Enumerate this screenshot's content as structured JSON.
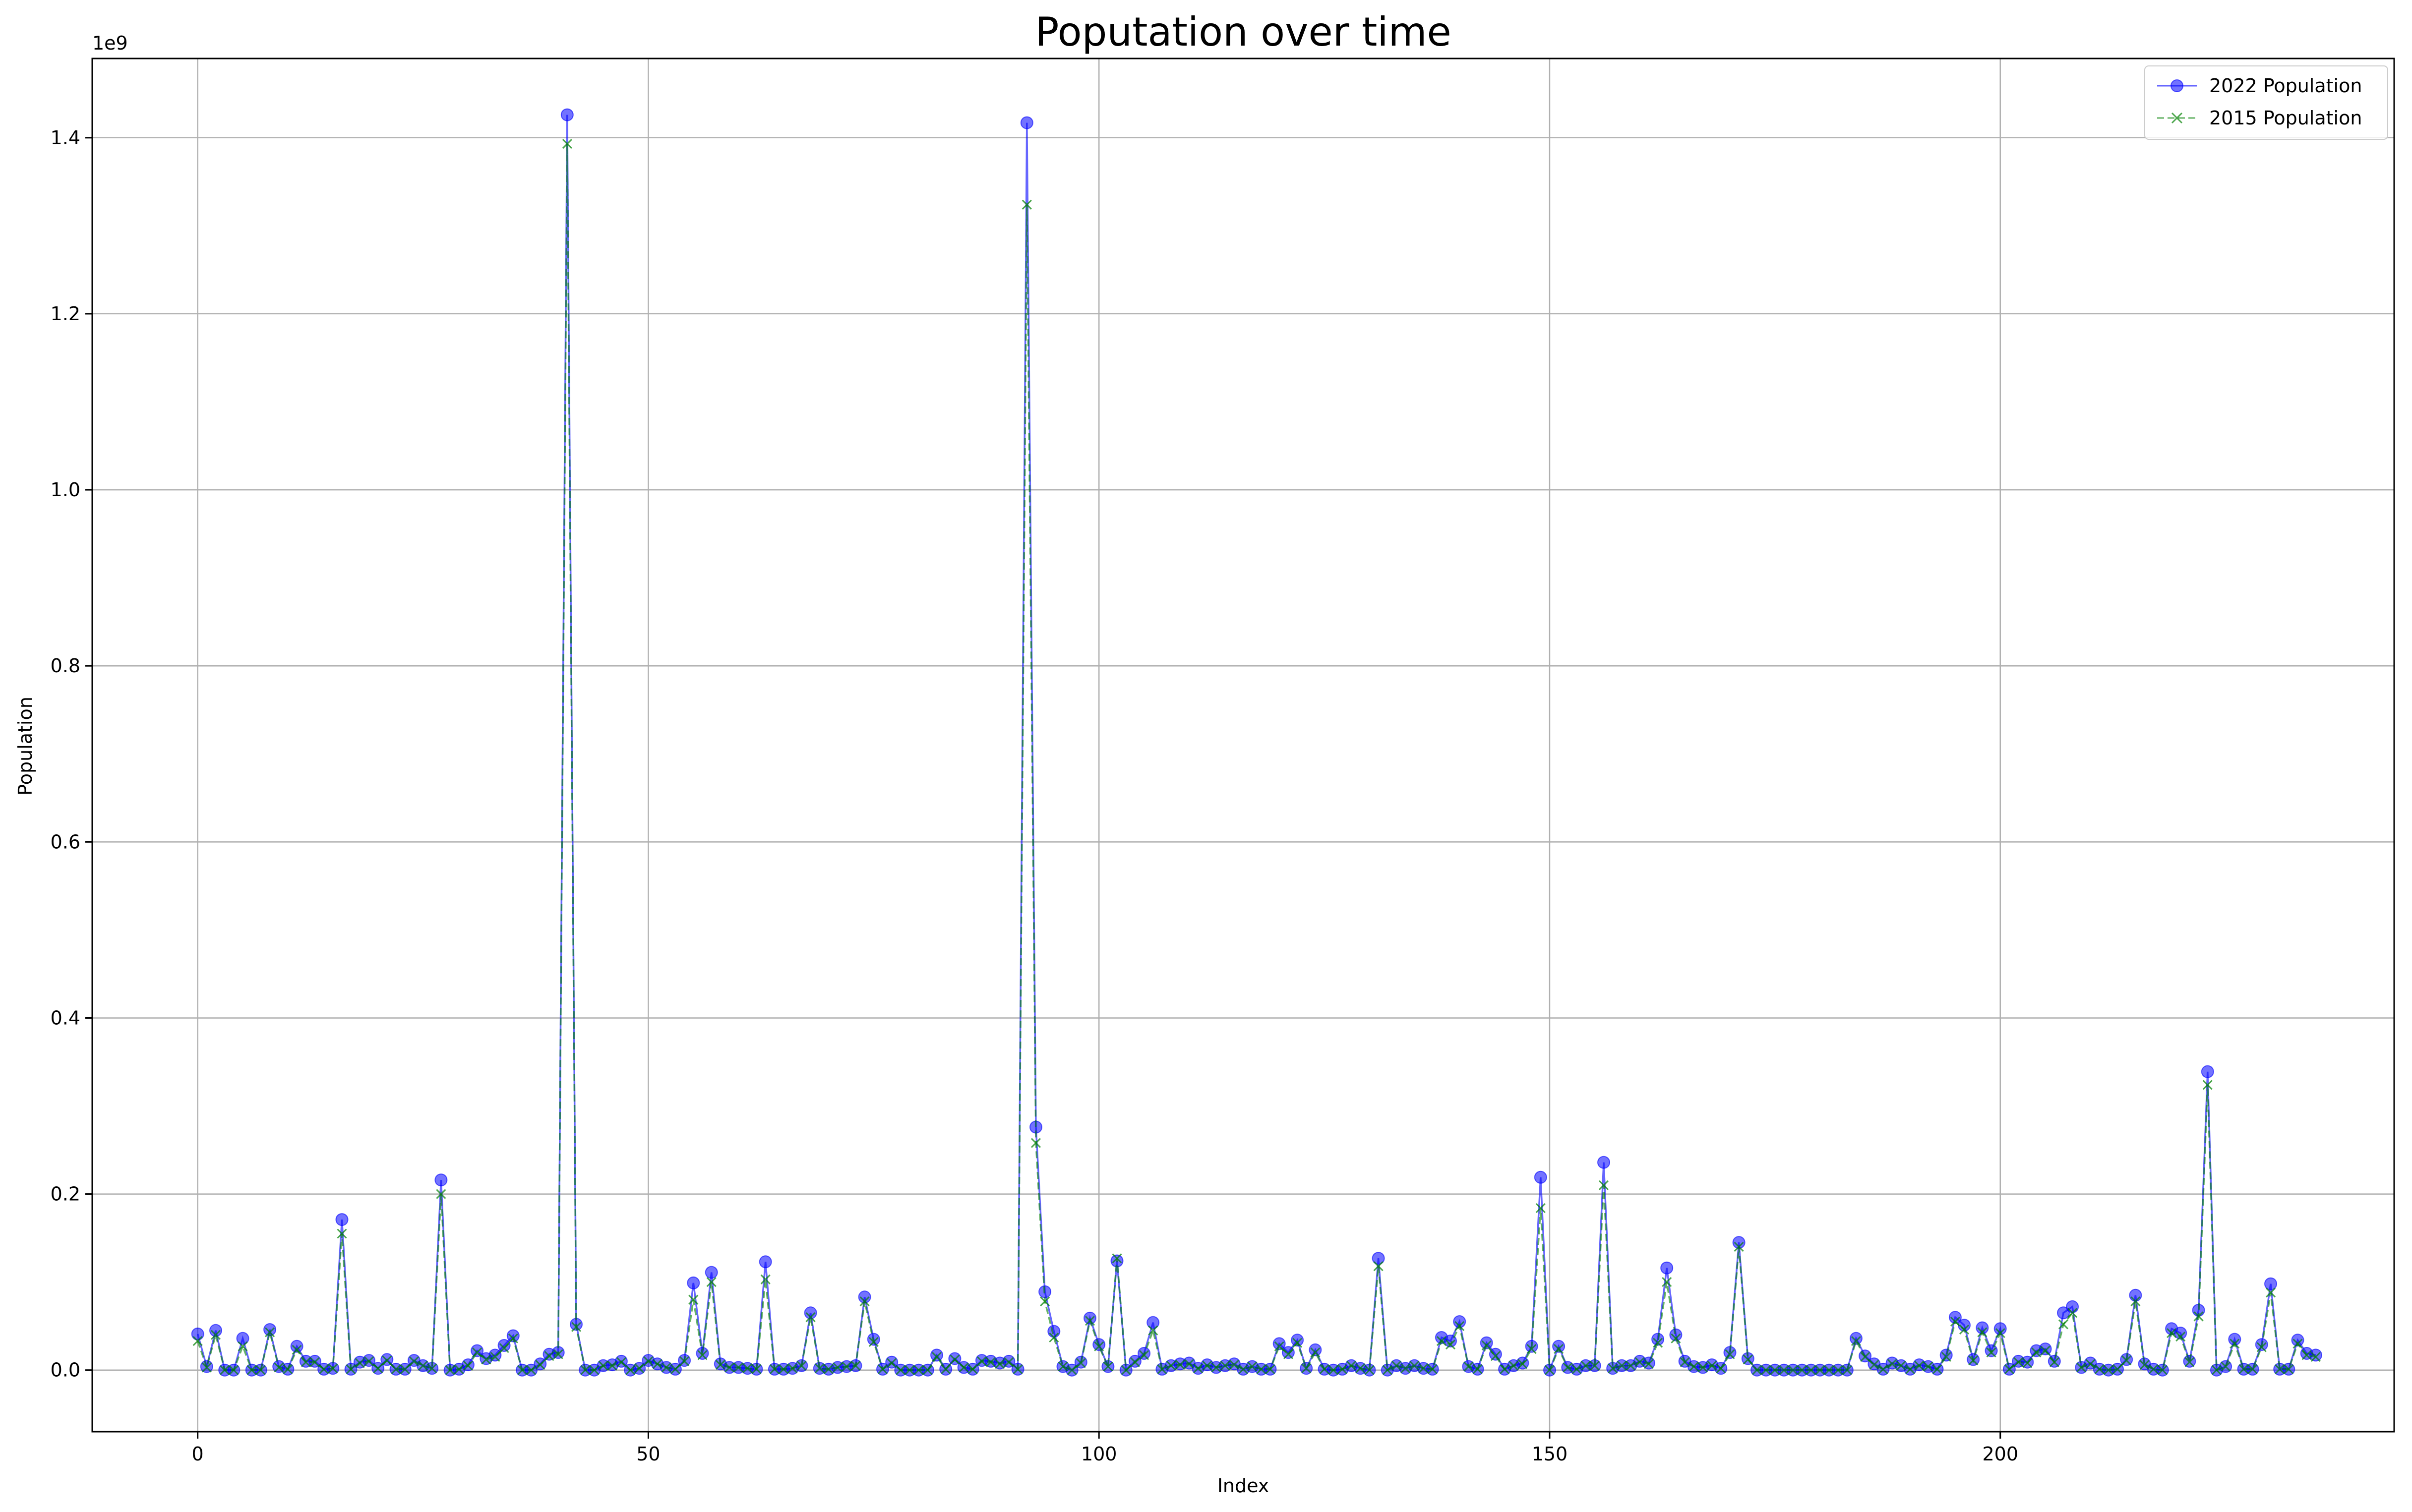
{
  "chart_data": {
    "type": "line",
    "title": "Poputation over time",
    "xlabel": "Index",
    "ylabel": "Population",
    "y_offset_label": "1e9",
    "xlim": [
      -11.7,
      243.7
    ],
    "ylim": [
      -0.07,
      1.49
    ],
    "x_ticks": [
      0,
      50,
      100,
      150,
      200
    ],
    "x_tick_labels": [
      "0",
      "50",
      "100",
      "150",
      "200"
    ],
    "y_ticks": [
      0.0,
      0.2,
      0.4,
      0.6,
      0.8,
      1.0,
      1.2,
      1.4
    ],
    "y_tick_labels": [
      "0.0",
      "0.2",
      "0.4",
      "0.6",
      "0.8",
      "1.0",
      "1.2",
      "1.4"
    ],
    "grid": true,
    "legend_position": "top-right",
    "colors": {
      "series_2022": "#0000ff",
      "series_2015": "#008000",
      "grid": "#b0b0b0"
    },
    "series": [
      {
        "name": "2022 Population",
        "style": "solid-circle",
        "values": [
          0.041,
          0.004,
          0.045,
          0.0,
          0.0,
          0.036,
          0.0,
          0.0,
          0.046,
          0.004,
          0.001,
          0.027,
          0.01,
          0.01,
          0.001,
          0.002,
          0.171,
          0.001,
          0.009,
          0.011,
          0.002,
          0.012,
          0.001,
          0.001,
          0.011,
          0.005,
          0.002,
          0.216,
          0.0,
          0.001,
          0.006,
          0.022,
          0.013,
          0.017,
          0.028,
          0.039,
          0.0,
          0.0,
          0.007,
          0.018,
          0.02,
          1.426,
          0.052,
          0.0,
          0.0,
          0.005,
          0.006,
          0.01,
          0.0,
          0.002,
          0.011,
          0.007,
          0.003,
          0.001,
          0.011,
          0.099,
          0.019,
          0.111,
          0.007,
          0.003,
          0.003,
          0.002,
          0.001,
          0.123,
          0.001,
          0.001,
          0.002,
          0.005,
          0.065,
          0.002,
          0.001,
          0.003,
          0.004,
          0.005,
          0.083,
          0.035,
          0.001,
          0.009,
          0.0,
          0.0,
          0.0,
          0.0,
          0.017,
          0.001,
          0.013,
          0.003,
          0.001,
          0.011,
          0.01,
          0.008,
          0.01,
          0.001,
          1.417,
          0.276,
          0.089,
          0.044,
          0.004,
          0.0,
          0.009,
          0.059,
          0.029,
          0.004,
          0.124,
          0.0,
          0.01,
          0.019,
          0.054,
          0.001,
          0.005,
          0.007,
          0.008,
          0.002,
          0.006,
          0.003,
          0.005,
          0.007,
          0.001,
          0.004,
          0.001,
          0.001,
          0.03,
          0.02,
          0.034,
          0.002,
          0.023,
          0.001,
          0.0,
          0.001,
          0.005,
          0.002,
          0.0,
          0.127,
          0.0,
          0.005,
          0.002,
          0.005,
          0.002,
          0.001,
          0.037,
          0.033,
          0.055,
          0.004,
          0.001,
          0.031,
          0.018,
          0.001,
          0.005,
          0.008,
          0.027,
          0.219,
          0.0,
          0.027,
          0.003,
          0.001,
          0.005,
          0.005,
          0.236,
          0.002,
          0.005,
          0.005,
          0.01,
          0.008,
          0.035,
          0.116,
          0.04,
          0.01,
          0.004,
          0.003,
          0.006,
          0.002,
          0.02,
          0.145,
          0.013,
          0.0,
          0.0,
          0.0,
          0.0,
          0.0,
          0.0,
          0.0,
          0.0,
          0.0,
          0.0,
          0.0,
          0.036,
          0.016,
          0.007,
          0.001,
          0.008,
          0.005,
          0.001,
          0.006,
          0.004,
          0.001,
          0.017,
          0.06,
          0.051,
          0.012,
          0.048,
          0.022,
          0.047,
          0.001,
          0.01,
          0.009,
          0.022,
          0.024,
          0.01,
          0.065,
          0.072,
          0.003,
          0.008,
          0.001,
          0.0,
          0.001,
          0.012,
          0.085,
          0.007,
          0.001,
          0.0,
          0.047,
          0.042,
          0.01,
          0.068,
          0.339,
          0.0,
          0.004,
          0.035,
          0.001,
          0.001,
          0.029,
          0.098,
          0.001,
          0.001,
          0.034,
          0.019,
          0.017
        ]
      },
      {
        "name": "2015 Population",
        "style": "dashed-x",
        "values": [
          0.033,
          0.003,
          0.04,
          0.0,
          0.0,
          0.027,
          0.0,
          0.0,
          0.043,
          0.003,
          0.001,
          0.023,
          0.009,
          0.009,
          0.001,
          0.002,
          0.155,
          0.001,
          0.008,
          0.01,
          0.002,
          0.011,
          0.001,
          0.001,
          0.01,
          0.005,
          0.002,
          0.2,
          0.0,
          0.001,
          0.005,
          0.02,
          0.012,
          0.015,
          0.025,
          0.036,
          0.0,
          0.0,
          0.006,
          0.016,
          0.018,
          1.393,
          0.049,
          0.0,
          0.0,
          0.005,
          0.005,
          0.009,
          0.0,
          0.002,
          0.01,
          0.007,
          0.003,
          0.001,
          0.01,
          0.08,
          0.017,
          0.1,
          0.006,
          0.003,
          0.003,
          0.002,
          0.001,
          0.103,
          0.001,
          0.001,
          0.002,
          0.005,
          0.06,
          0.002,
          0.001,
          0.003,
          0.004,
          0.005,
          0.078,
          0.032,
          0.001,
          0.008,
          0.0,
          0.0,
          0.0,
          0.0,
          0.015,
          0.001,
          0.012,
          0.003,
          0.001,
          0.01,
          0.009,
          0.007,
          0.009,
          0.001,
          1.324,
          0.258,
          0.078,
          0.037,
          0.004,
          0.0,
          0.008,
          0.056,
          0.027,
          0.004,
          0.127,
          0.0,
          0.009,
          0.017,
          0.045,
          0.001,
          0.005,
          0.006,
          0.007,
          0.002,
          0.005,
          0.003,
          0.005,
          0.006,
          0.001,
          0.004,
          0.001,
          0.001,
          0.027,
          0.018,
          0.031,
          0.002,
          0.02,
          0.001,
          0.0,
          0.001,
          0.005,
          0.002,
          0.0,
          0.118,
          0.0,
          0.005,
          0.002,
          0.005,
          0.002,
          0.001,
          0.033,
          0.029,
          0.05,
          0.004,
          0.001,
          0.028,
          0.016,
          0.001,
          0.005,
          0.007,
          0.024,
          0.184,
          0.0,
          0.024,
          0.003,
          0.001,
          0.005,
          0.005,
          0.21,
          0.002,
          0.005,
          0.005,
          0.009,
          0.007,
          0.031,
          0.1,
          0.036,
          0.009,
          0.004,
          0.003,
          0.005,
          0.002,
          0.018,
          0.14,
          0.012,
          0.0,
          0.0,
          0.0,
          0.0,
          0.0,
          0.0,
          0.0,
          0.0,
          0.0,
          0.0,
          0.0,
          0.033,
          0.015,
          0.006,
          0.001,
          0.007,
          0.005,
          0.001,
          0.005,
          0.004,
          0.001,
          0.015,
          0.055,
          0.046,
          0.011,
          0.043,
          0.02,
          0.042,
          0.001,
          0.009,
          0.008,
          0.02,
          0.022,
          0.009,
          0.052,
          0.065,
          0.003,
          0.007,
          0.001,
          0.0,
          0.001,
          0.011,
          0.078,
          0.006,
          0.001,
          0.0,
          0.042,
          0.038,
          0.009,
          0.061,
          0.324,
          0.0,
          0.004,
          0.03,
          0.001,
          0.001,
          0.026,
          0.088,
          0.001,
          0.001,
          0.03,
          0.017,
          0.015
        ]
      }
    ]
  }
}
